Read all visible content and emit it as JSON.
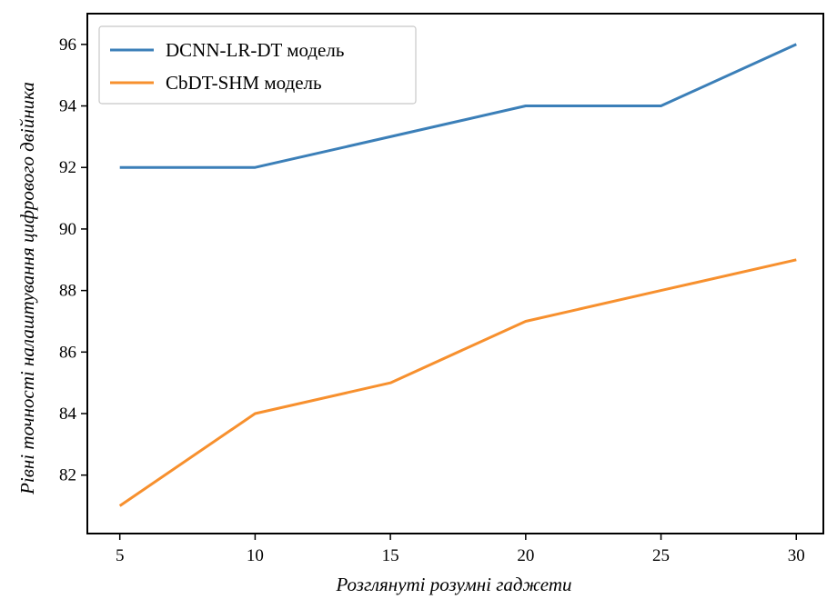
{
  "chart_data": {
    "type": "line",
    "title": "",
    "xlabel": "Розглянуті розумні гаджети",
    "ylabel": "Рівні точності налаштування цифрового двійника",
    "x": [
      5,
      10,
      15,
      20,
      25,
      30
    ],
    "x_ticks": [
      5,
      10,
      15,
      20,
      25,
      30
    ],
    "xlim": [
      3.8,
      31
    ],
    "y_ticks": [
      82,
      84,
      86,
      88,
      90,
      92,
      94,
      96
    ],
    "ylim": [
      80.1,
      97.0
    ],
    "grid": false,
    "legend_position": "top-left",
    "series": [
      {
        "name": "DCNN-LR-DT модель",
        "color": "#3b7fb8",
        "values": [
          92,
          92,
          93,
          94,
          94,
          96
        ]
      },
      {
        "name": "CbDT-SHM модель",
        "color": "#f7902e",
        "values": [
          81,
          84,
          85,
          87,
          88,
          89
        ]
      }
    ]
  }
}
